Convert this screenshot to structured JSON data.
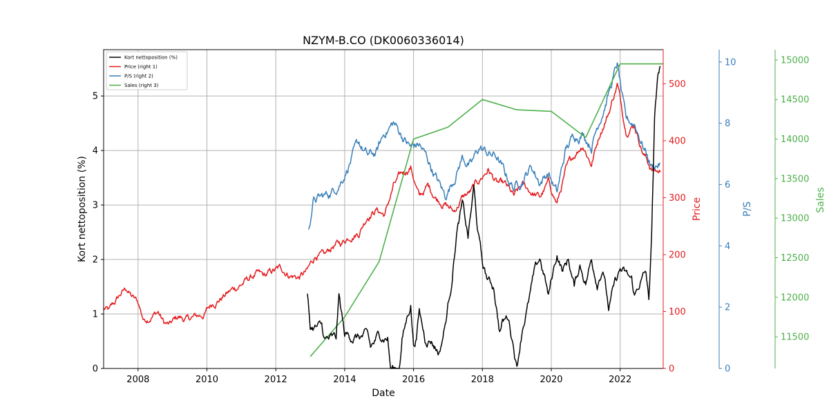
{
  "chart_data": {
    "type": "line",
    "title": "NZYM-B.CO (DK0060336014)",
    "xlabel": "Date",
    "x_ticks": [
      "2008",
      "2010",
      "2012",
      "2014",
      "2016",
      "2018",
      "2020",
      "2022"
    ],
    "x_range": [
      "2007-01-01",
      "2023-04-01"
    ],
    "grid": true,
    "legend_position": "upper-left",
    "axes": {
      "left": {
        "label": "Kort nettoposition (%)",
        "range": [
          0,
          5.85
        ],
        "ticks": [
          "0",
          "1",
          "2",
          "3",
          "4",
          "5"
        ],
        "color": "#000000"
      },
      "right1": {
        "label": "Price",
        "range": [
          0,
          560
        ],
        "ticks": [
          "0",
          "100",
          "200",
          "300",
          "400",
          "500"
        ],
        "color": "#e41a1c"
      },
      "right2": {
        "label": "P/S",
        "range": [
          0,
          10.4
        ],
        "ticks": [
          "0",
          "2",
          "4",
          "6",
          "8",
          "10"
        ],
        "color": "#377eb8"
      },
      "right3": {
        "label": "Sales",
        "range": [
          11100,
          15130
        ],
        "ticks": [
          "11500",
          "12000",
          "12500",
          "13000",
          "13500",
          "14000",
          "14500",
          "15000"
        ],
        "color": "#4daf4a"
      }
    },
    "series": [
      {
        "name": "Kort nettoposition (%)",
        "axis": "left",
        "color": "#000000",
        "points": [
          [
            "2012-12-01",
            1.35
          ],
          [
            "2013-01-01",
            0.75
          ],
          [
            "2013-05-01",
            0.75
          ],
          [
            "2013-06-01",
            0.52
          ],
          [
            "2013-10-01",
            0.52
          ],
          [
            "2013-11-01",
            1.3
          ],
          [
            "2014-01-01",
            0.6
          ],
          [
            "2014-05-01",
            0.58
          ],
          [
            "2014-09-01",
            0.58
          ],
          [
            "2014-10-01",
            0.35
          ],
          [
            "2015-01-01",
            0.6
          ],
          [
            "2015-04-01",
            0.58
          ],
          [
            "2015-05-01",
            0.0
          ],
          [
            "2015-08-01",
            0.0
          ],
          [
            "2015-09-01",
            0.55
          ],
          [
            "2015-12-01",
            1.2
          ],
          [
            "2016-01-01",
            0.45
          ],
          [
            "2016-02-01",
            0.6
          ],
          [
            "2016-03-01",
            1.05
          ],
          [
            "2016-05-01",
            0.55
          ],
          [
            "2016-07-01",
            0.55
          ],
          [
            "2016-10-01",
            0.3
          ],
          [
            "2016-12-01",
            0.8
          ],
          [
            "2017-02-01",
            1.5
          ],
          [
            "2017-04-01",
            2.5
          ],
          [
            "2017-06-01",
            3.0
          ],
          [
            "2017-08-01",
            2.4
          ],
          [
            "2017-10-01",
            3.3
          ],
          [
            "2017-11-01",
            2.7
          ],
          [
            "2018-01-01",
            1.9
          ],
          [
            "2018-03-01",
            1.6
          ],
          [
            "2018-05-01",
            1.5
          ],
          [
            "2018-07-01",
            0.7
          ],
          [
            "2018-08-01",
            0.85
          ],
          [
            "2018-10-01",
            0.95
          ],
          [
            "2018-12-01",
            0.4
          ],
          [
            "2019-01-01",
            0.05
          ],
          [
            "2019-03-01",
            0.8
          ],
          [
            "2019-05-01",
            1.2
          ],
          [
            "2019-07-01",
            1.7
          ],
          [
            "2019-09-01",
            2.0
          ],
          [
            "2019-11-01",
            1.6
          ],
          [
            "2019-12-01",
            1.3
          ],
          [
            "2020-01-01",
            1.6
          ],
          [
            "2020-03-01",
            2.1
          ],
          [
            "2020-05-01",
            1.8
          ],
          [
            "2020-07-01",
            2.0
          ],
          [
            "2020-09-01",
            1.5
          ],
          [
            "2020-11-01",
            1.9
          ],
          [
            "2021-01-01",
            1.6
          ],
          [
            "2021-03-01",
            2.0
          ],
          [
            "2021-05-01",
            1.6
          ],
          [
            "2021-07-01",
            1.9
          ],
          [
            "2021-09-01",
            1.1
          ],
          [
            "2021-11-01",
            1.5
          ],
          [
            "2022-01-01",
            1.8
          ],
          [
            "2022-03-01",
            1.7
          ],
          [
            "2022-05-01",
            1.6
          ],
          [
            "2022-06-01",
            1.3
          ],
          [
            "2022-08-01",
            1.6
          ],
          [
            "2022-10-01",
            1.75
          ],
          [
            "2022-11-01",
            1.2
          ],
          [
            "2022-12-01",
            2.5
          ],
          [
            "2023-01-01",
            4.5
          ],
          [
            "2023-02-01",
            5.3
          ],
          [
            "2023-03-01",
            5.55
          ]
        ]
      },
      {
        "name": "Price (right 1)",
        "axis": "right1",
        "color": "#e41a1c",
        "points": [
          [
            "2007-01-01",
            105
          ],
          [
            "2007-03-01",
            100
          ],
          [
            "2007-07-01",
            130
          ],
          [
            "2007-09-01",
            140
          ],
          [
            "2007-11-01",
            125
          ],
          [
            "2008-01-01",
            115
          ],
          [
            "2008-03-01",
            85
          ],
          [
            "2008-06-01",
            95
          ],
          [
            "2008-08-01",
            100
          ],
          [
            "2008-10-01",
            80
          ],
          [
            "2008-12-01",
            75
          ],
          [
            "2009-03-01",
            90
          ],
          [
            "2009-06-01",
            85
          ],
          [
            "2009-09-01",
            90
          ],
          [
            "2009-12-01",
            95
          ],
          [
            "2010-03-01",
            115
          ],
          [
            "2010-06-01",
            125
          ],
          [
            "2010-09-01",
            135
          ],
          [
            "2010-12-01",
            145
          ],
          [
            "2011-03-01",
            155
          ],
          [
            "2011-06-01",
            165
          ],
          [
            "2011-09-01",
            160
          ],
          [
            "2011-12-01",
            170
          ],
          [
            "2012-03-01",
            175
          ],
          [
            "2012-06-01",
            165
          ],
          [
            "2012-09-01",
            160
          ],
          [
            "2012-12-01",
            170
          ],
          [
            "2013-03-01",
            200
          ],
          [
            "2013-06-01",
            195
          ],
          [
            "2013-09-01",
            215
          ],
          [
            "2013-12-01",
            220
          ],
          [
            "2014-03-01",
            235
          ],
          [
            "2014-06-01",
            240
          ],
          [
            "2014-09-01",
            270
          ],
          [
            "2014-12-01",
            280
          ],
          [
            "2015-03-01",
            270
          ],
          [
            "2015-06-01",
            320
          ],
          [
            "2015-09-01",
            340
          ],
          [
            "2015-12-01",
            355
          ],
          [
            "2016-03-01",
            300
          ],
          [
            "2016-06-01",
            320
          ],
          [
            "2016-09-01",
            300
          ],
          [
            "2016-12-01",
            290
          ],
          [
            "2017-03-01",
            275
          ],
          [
            "2017-06-01",
            300
          ],
          [
            "2017-09-01",
            310
          ],
          [
            "2017-12-01",
            330
          ],
          [
            "2018-03-01",
            350
          ],
          [
            "2018-06-01",
            325
          ],
          [
            "2018-09-01",
            320
          ],
          [
            "2018-12-01",
            300
          ],
          [
            "2019-03-01",
            320
          ],
          [
            "2019-06-01",
            310
          ],
          [
            "2019-09-01",
            300
          ],
          [
            "2019-12-01",
            325
          ],
          [
            "2020-03-01",
            290
          ],
          [
            "2020-06-01",
            345
          ],
          [
            "2020-09-01",
            375
          ],
          [
            "2020-12-01",
            395
          ],
          [
            "2021-03-01",
            360
          ],
          [
            "2021-06-01",
            415
          ],
          [
            "2021-09-01",
            450
          ],
          [
            "2021-12-01",
            500
          ],
          [
            "2022-03-01",
            420
          ],
          [
            "2022-06-01",
            430
          ],
          [
            "2022-09-01",
            380
          ],
          [
            "2022-12-01",
            350
          ],
          [
            "2023-03-01",
            345
          ]
        ]
      },
      {
        "name": "P/S (right 2)",
        "axis": "right2",
        "color": "#377eb8",
        "points": [
          [
            "2012-12-15",
            4.6
          ],
          [
            "2013-02-01",
            5.5
          ],
          [
            "2013-06-01",
            5.6
          ],
          [
            "2013-09-01",
            5.8
          ],
          [
            "2013-12-01",
            6.2
          ],
          [
            "2014-03-01",
            6.8
          ],
          [
            "2014-06-01",
            7.3
          ],
          [
            "2014-09-01",
            6.9
          ],
          [
            "2014-12-01",
            7.0
          ],
          [
            "2015-03-01",
            7.7
          ],
          [
            "2015-06-01",
            8.0
          ],
          [
            "2015-09-01",
            7.6
          ],
          [
            "2015-12-01",
            7.2
          ],
          [
            "2016-03-01",
            7.3
          ],
          [
            "2016-06-01",
            6.8
          ],
          [
            "2016-09-01",
            6.2
          ],
          [
            "2016-12-01",
            5.6
          ],
          [
            "2017-03-01",
            6.2
          ],
          [
            "2017-06-01",
            6.9
          ],
          [
            "2017-09-01",
            6.6
          ],
          [
            "2017-12-01",
            7.2
          ],
          [
            "2018-03-01",
            7.0
          ],
          [
            "2018-06-01",
            6.9
          ],
          [
            "2018-09-01",
            6.3
          ],
          [
            "2018-12-01",
            5.9
          ],
          [
            "2019-03-01",
            6.2
          ],
          [
            "2019-06-01",
            6.6
          ],
          [
            "2019-09-01",
            6.1
          ],
          [
            "2019-12-01",
            6.4
          ],
          [
            "2020-03-01",
            5.7
          ],
          [
            "2020-06-01",
            7.1
          ],
          [
            "2020-09-01",
            7.6
          ],
          [
            "2020-12-01",
            7.7
          ],
          [
            "2021-03-01",
            7.3
          ],
          [
            "2021-06-01",
            8.2
          ],
          [
            "2021-09-01",
            9.0
          ],
          [
            "2021-12-01",
            9.9
          ],
          [
            "2022-03-01",
            8.0
          ],
          [
            "2022-06-01",
            8.0
          ],
          [
            "2022-09-01",
            7.3
          ],
          [
            "2022-12-01",
            6.6
          ],
          [
            "2023-03-01",
            6.7
          ]
        ]
      },
      {
        "name": "Sales (right 3)",
        "axis": "right3",
        "color": "#4daf4a",
        "points": [
          [
            "2013-01-01",
            11250
          ],
          [
            "2014-01-01",
            11750
          ],
          [
            "2015-01-01",
            12450
          ],
          [
            "2016-01-01",
            14000
          ],
          [
            "2017-01-01",
            14150
          ],
          [
            "2018-01-01",
            14500
          ],
          [
            "2019-01-01",
            14370
          ],
          [
            "2020-01-01",
            14350
          ],
          [
            "2021-01-01",
            14020
          ],
          [
            "2022-01-01",
            14950
          ],
          [
            "2023-04-01",
            14950
          ]
        ]
      }
    ]
  }
}
